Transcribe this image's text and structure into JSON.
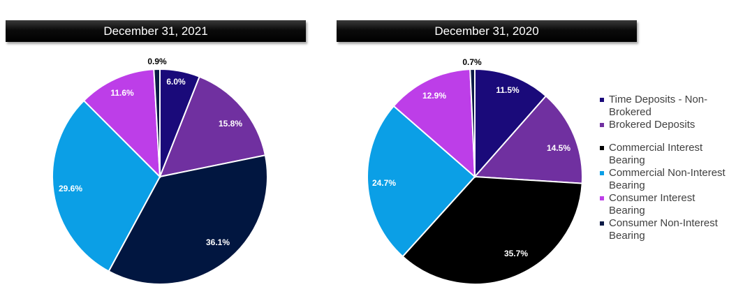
{
  "chart_data": [
    {
      "type": "pie",
      "title": "December 31, 2021",
      "labels": [
        "Time Deposits - Non-Brokered",
        "Brokered Deposits",
        "Commercial Interest Bearing",
        "Commercial Non-Interest Bearing",
        "Consumer Interest Bearing",
        "Consumer Non-Interest Bearing"
      ],
      "values": [
        6.0,
        15.8,
        36.1,
        29.6,
        11.6,
        0.9
      ],
      "value_labels": [
        "6.0%",
        "15.8%",
        "36.1%",
        "29.6%",
        "11.6%",
        "0.9%"
      ],
      "colors": [
        "#1a0a7a",
        "#7030a0",
        "#011640",
        "#0b9fe6",
        "#bd3ee8",
        "#0a1a45"
      ]
    },
    {
      "type": "pie",
      "title": "December 31, 2020",
      "labels": [
        "Time Deposits - Non-Brokered",
        "Brokered Deposits",
        "Commercial Interest Bearing",
        "Commercial Non-Interest Bearing",
        "Consumer Interest Bearing",
        "Consumer Non-Interest Bearing"
      ],
      "values": [
        11.5,
        14.5,
        35.7,
        24.7,
        12.9,
        0.7
      ],
      "value_labels": [
        "11.5%",
        "14.5%",
        "35.7%",
        "24.7%",
        "12.9%",
        "0.7%"
      ],
      "colors": [
        "#1a0a7a",
        "#7030a0",
        "#000000",
        "#0b9fe6",
        "#bd3ee8",
        "#0a1a45"
      ]
    }
  ],
  "legend": {
    "items": [
      {
        "label": "Time Deposits - Non-Brokered",
        "color": "#1a0a7a"
      },
      {
        "label": "Brokered Deposits",
        "color": "#7030a0"
      },
      {
        "label": "Commercial Interest Bearing",
        "color": "#000000"
      },
      {
        "label": "Commercial Non-Interest Bearing",
        "color": "#0b9fe6"
      },
      {
        "label": "Consumer Interest Bearing",
        "color": "#bd3ee8"
      },
      {
        "label": "Consumer Non-Interest Bearing",
        "color": "#0a1a45"
      }
    ]
  }
}
